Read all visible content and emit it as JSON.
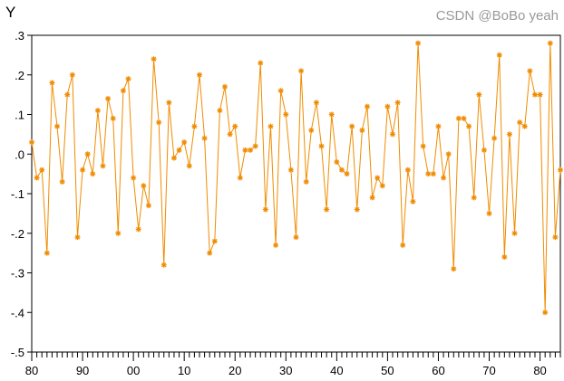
{
  "chart_data": {
    "type": "line",
    "title": "Y",
    "xlabel": "",
    "ylabel": "",
    "marker": "asterisk",
    "color": "#f08c00",
    "grid": false,
    "xlim": [
      1880,
      1984
    ],
    "ylim": [
      -0.5,
      0.3
    ],
    "xticks": [
      1880,
      1890,
      1900,
      1910,
      1920,
      1930,
      1940,
      1950,
      1960,
      1970,
      1980
    ],
    "xtick_labels": [
      "80",
      "90",
      "00",
      "10",
      "20",
      "30",
      "40",
      "50",
      "60",
      "70",
      "80"
    ],
    "yticks": [
      0.3,
      0.2,
      0.1,
      0.0,
      -0.1,
      -0.2,
      -0.3,
      -0.4,
      -0.5
    ],
    "ytick_labels": [
      ".3",
      ".2",
      ".1",
      ".0",
      "-.1",
      "-.2",
      "-.3",
      "-.4",
      "-.5"
    ],
    "x_start": 1880,
    "values": [
      0.03,
      -0.06,
      -0.04,
      -0.25,
      0.18,
      0.07,
      -0.07,
      0.15,
      0.2,
      -0.21,
      -0.04,
      0.0,
      -0.05,
      0.11,
      -0.03,
      0.14,
      0.09,
      -0.2,
      0.16,
      0.19,
      -0.06,
      -0.19,
      -0.08,
      -0.13,
      0.24,
      0.08,
      -0.28,
      0.13,
      -0.01,
      0.01,
      0.03,
      -0.03,
      0.07,
      0.2,
      0.04,
      -0.25,
      -0.22,
      0.11,
      0.17,
      0.05,
      0.07,
      -0.06,
      0.01,
      0.01,
      0.02,
      0.23,
      -0.14,
      0.07,
      -0.23,
      0.16,
      0.1,
      -0.04,
      -0.21,
      0.21,
      -0.07,
      0.06,
      0.13,
      0.02,
      -0.14,
      0.1,
      -0.02,
      -0.04,
      -0.05,
      0.07,
      -0.14,
      0.06,
      0.12,
      -0.11,
      -0.06,
      -0.08,
      0.12,
      0.05,
      0.13,
      -0.23,
      -0.04,
      -0.12,
      0.28,
      0.02,
      -0.05,
      -0.05,
      0.07,
      -0.06,
      0.0,
      -0.29,
      0.09,
      0.09,
      0.07,
      -0.11,
      0.15,
      0.01,
      -0.15,
      0.04,
      0.25,
      -0.26,
      0.05,
      -0.2,
      0.08,
      0.07,
      0.21,
      0.15,
      0.15,
      -0.4,
      0.28,
      -0.21,
      -0.04
    ]
  },
  "watermark": "CSDN @BoBo yeah"
}
